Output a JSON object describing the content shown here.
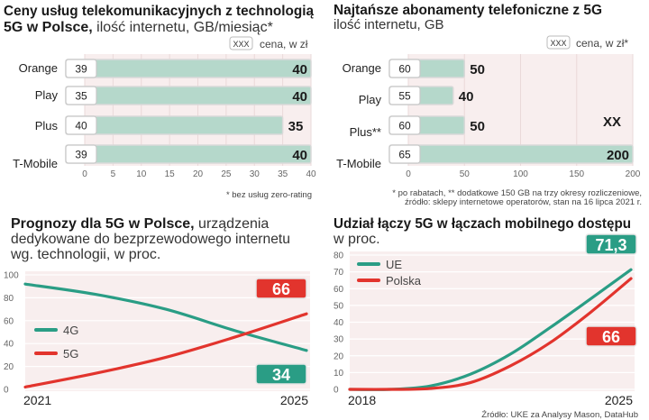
{
  "colors": {
    "teal": "#2a9d85",
    "red": "#e2342d",
    "bar": "#b5d8cb",
    "plot_bg": "#f8eeee"
  },
  "chart_data": [
    {
      "type": "bar",
      "orientation": "horizontal",
      "title_bold": "Ceny usług telekomunikacyjnych z technologią",
      "title_bold2": "5G w Polsce,",
      "subtitle": " ilość internetu, GB/miesiąc*",
      "legend": {
        "box": "XXX",
        "label": "cena, w zł"
      },
      "categories": [
        "Orange",
        "Play",
        "Plus",
        "T-Mobile"
      ],
      "values": [
        40,
        40,
        35,
        40
      ],
      "prices": [
        "39",
        "35",
        "40",
        "39"
      ],
      "xlim": [
        0,
        40
      ],
      "xticks": [
        "0",
        "5",
        "10",
        "15",
        "20",
        "25",
        "30",
        "35",
        "40"
      ],
      "footnote": "* bez usług zero-rating"
    },
    {
      "type": "bar",
      "orientation": "horizontal",
      "title_bold": "Najtańsze abonamenty telefoniczne z 5G",
      "subtitle": "ilość internetu, GB",
      "legend": {
        "box": "XXX",
        "label": "cena, w zł*"
      },
      "categories": [
        "Orange",
        "Play",
        "Plus**",
        "T-Mobile"
      ],
      "values": [
        50,
        40,
        50,
        200
      ],
      "prices": [
        "60",
        "55",
        "60",
        "65"
      ],
      "xlim": [
        0,
        200
      ],
      "xticks": [
        "0",
        "50",
        "100",
        "150",
        "200"
      ],
      "annotation": "XX",
      "footnote1": "* po rabatach, ** dodatkowe 150 GB na trzy okresy rozliczeniowe,",
      "footnote2": "źródło: sklepy internetowe operatorów, stan na 16 lipca 2021 r."
    },
    {
      "type": "line",
      "title_bold": "Prognozy dla 5G w Polsce,",
      "subtitle1": " urządzenia",
      "subtitle2": "dedykowane do bezprzewodowego internetu",
      "subtitle3": "wg. technologii, w proc.",
      "x": [
        2021,
        2022,
        2023,
        2024,
        2025
      ],
      "xticks": [
        "2021",
        "2025"
      ],
      "ylim": [
        0,
        100
      ],
      "yticks": [
        "0",
        "20",
        "40",
        "60",
        "80",
        "100"
      ],
      "series": [
        {
          "name": "4G",
          "color": "#2a9d85",
          "values": [
            92,
            83,
            70,
            51,
            34
          ],
          "end_label": "34"
        },
        {
          "name": "5G",
          "color": "#e2342d",
          "values": [
            2,
            14,
            28,
            46,
            66
          ],
          "end_label": "66"
        }
      ]
    },
    {
      "type": "line",
      "title_bold": "Udział łączy 5G w łączach mobilnego dostępu",
      "subtitle": "w proc.",
      "x": [
        2018,
        2019,
        2020,
        2021,
        2022,
        2023,
        2024,
        2025
      ],
      "xticks": [
        "2018",
        "2025"
      ],
      "ylim": [
        0,
        80
      ],
      "yticks": [
        "0",
        "10",
        "20",
        "30",
        "40",
        "50",
        "60",
        "70",
        "80"
      ],
      "series": [
        {
          "name": "UE",
          "color": "#2a9d85",
          "values": [
            0,
            0,
            2,
            9,
            21,
            37,
            54,
            71.3
          ],
          "end_label": "71,3"
        },
        {
          "name": "Polska",
          "color": "#e2342d",
          "values": [
            0,
            0,
            0.5,
            4,
            14,
            28,
            46,
            66
          ],
          "end_label": "66"
        }
      ],
      "source": "Źródło: UKE za Analysy Mason, DataHub"
    }
  ]
}
